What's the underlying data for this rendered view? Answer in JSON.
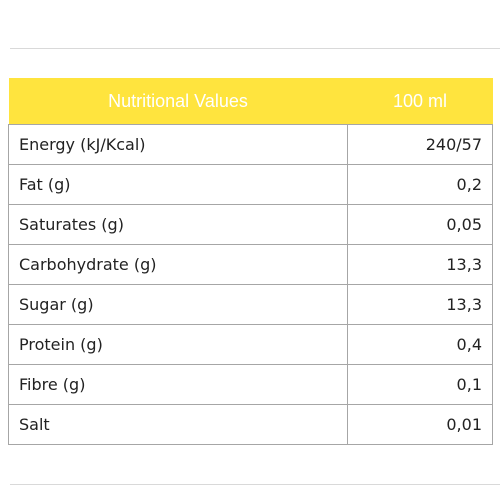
{
  "table": {
    "header": {
      "label": "Nutritional Values",
      "value": "100 ml"
    },
    "rows": [
      {
        "label": "Energy (kJ/Kcal)",
        "value": "240/57"
      },
      {
        "label": "Fat (g)",
        "value": "0,2"
      },
      {
        "label": "Saturates (g)",
        "value": "0,05"
      },
      {
        "label": "Carbohydrate (g)",
        "value": "13,3"
      },
      {
        "label": "Sugar (g)",
        "value": "13,3"
      },
      {
        "label": "Protein (g)",
        "value": "0,4"
      },
      {
        "label": "Fibre (g)",
        "value": "0,1"
      },
      {
        "label": "Salt",
        "value": "0,01"
      }
    ]
  },
  "colors": {
    "header_background": "#ffe43e",
    "header_text": "#ffffff",
    "border": "#a6a6a6"
  }
}
